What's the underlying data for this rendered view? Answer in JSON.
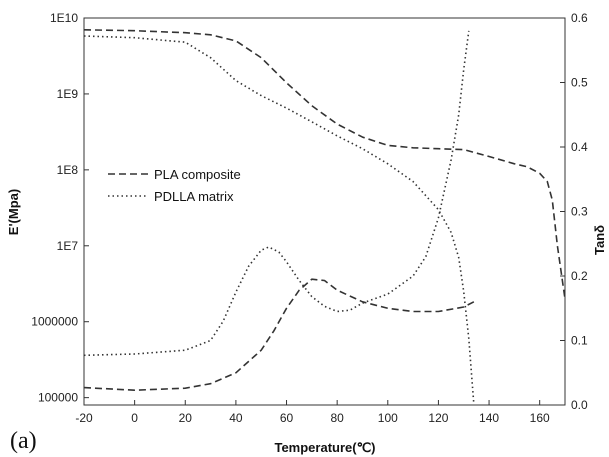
{
  "chart_data": {
    "type": "line",
    "panel_tag": "(a)",
    "xlabel": "Temperature(℃)",
    "ylabel_left": "E'(Mpa)",
    "ylabel_right": "Tanδ",
    "xlim": [
      -20,
      170
    ],
    "ylim_left": [
      80000,
      10000000000
    ],
    "ylim_right": [
      0,
      0.6
    ],
    "y_left_scale": "log",
    "x_ticks": [
      "-20",
      "0",
      "20",
      "40",
      "60",
      "80",
      "100",
      "120",
      "140",
      "160"
    ],
    "y_left_ticks": [
      "100000",
      "1000000",
      "1E7",
      "1E8",
      "1E9",
      "1E10"
    ],
    "y_right_ticks": [
      "0.0",
      "0.1",
      "0.2",
      "0.3",
      "0.4",
      "0.5",
      "0.6"
    ],
    "legend": {
      "placement": "center-left",
      "entries": [
        "PLA composite",
        "PDLLA matrix"
      ]
    },
    "series": [
      {
        "name": "PLA composite",
        "quantity": "E'",
        "axis": "left",
        "style": "dashed",
        "color": "#333333",
        "x": [
          -20,
          0,
          20,
          30,
          40,
          50,
          60,
          70,
          80,
          90,
          100,
          110,
          120,
          130,
          140,
          150,
          155,
          160,
          163,
          165,
          167,
          170
        ],
        "y": [
          7000000000,
          6800000000,
          6400000000,
          6000000000,
          5000000000,
          3000000000,
          1400000000,
          700000000,
          400000000,
          270000000,
          210000000,
          195000000,
          190000000,
          185000000,
          150000000,
          120000000,
          110000000,
          90000000,
          70000000,
          40000000,
          10000000,
          2000000
        ]
      },
      {
        "name": "PDLLA matrix",
        "quantity": "E'",
        "axis": "left",
        "style": "dotted",
        "color": "#333333",
        "x": [
          -20,
          0,
          20,
          30,
          40,
          50,
          60,
          70,
          80,
          90,
          100,
          110,
          120,
          125,
          128,
          130,
          132,
          134
        ],
        "y": [
          5800000000,
          5500000000,
          4800000000,
          3000000000,
          1500000000,
          950000000,
          650000000,
          430000000,
          280000000,
          190000000,
          120000000,
          70000000,
          30000000,
          15000000,
          7000000,
          2500000,
          600000,
          80000
        ]
      },
      {
        "name": "PLA composite",
        "quantity": "Tanδ",
        "axis": "right",
        "style": "dashed",
        "color": "#333333",
        "x": [
          -20,
          0,
          20,
          30,
          40,
          50,
          55,
          60,
          65,
          70,
          75,
          80,
          90,
          100,
          110,
          120,
          130,
          135
        ],
        "y": [
          0.027,
          0.023,
          0.026,
          0.033,
          0.05,
          0.085,
          0.115,
          0.15,
          0.178,
          0.195,
          0.193,
          0.178,
          0.16,
          0.15,
          0.145,
          0.145,
          0.152,
          0.162
        ]
      },
      {
        "name": "PDLLA matrix",
        "quantity": "Tanδ",
        "axis": "right",
        "style": "dotted",
        "color": "#333333",
        "x": [
          -20,
          0,
          20,
          30,
          35,
          40,
          45,
          50,
          53,
          57,
          60,
          65,
          70,
          75,
          80,
          85,
          90,
          100,
          110,
          115,
          120,
          125,
          128,
          130,
          132
        ],
        "y": [
          0.077,
          0.079,
          0.085,
          0.1,
          0.13,
          0.175,
          0.215,
          0.24,
          0.245,
          0.237,
          0.222,
          0.193,
          0.168,
          0.153,
          0.145,
          0.147,
          0.158,
          0.172,
          0.2,
          0.23,
          0.29,
          0.38,
          0.45,
          0.52,
          0.58
        ]
      }
    ]
  }
}
